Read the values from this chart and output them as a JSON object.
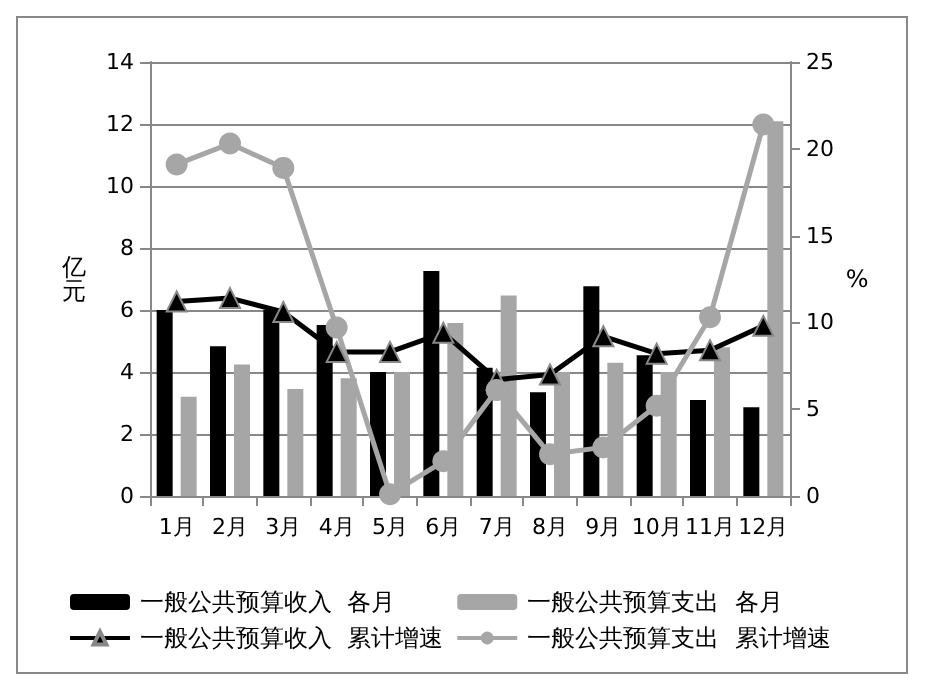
{
  "chart_data": {
    "type": "bar",
    "categories": [
      "1月",
      "2月",
      "3月",
      "4月",
      "5月",
      "6月",
      "7月",
      "8月",
      "9月",
      "10月",
      "11月",
      "12月"
    ],
    "ylabel": "亿元",
    "y2label": "%",
    "ylim": [
      0,
      14
    ],
    "yticks": [
      0,
      2,
      4,
      6,
      8,
      10,
      12,
      14
    ],
    "y2lim": [
      0,
      25
    ],
    "y2ticks": [
      0,
      5,
      10,
      15,
      20,
      25
    ],
    "grid": "y",
    "legend": "bottom",
    "series": [
      {
        "name": "一般公共预算收入  各月",
        "color": "#000000",
        "values": [
          6.0,
          4.83,
          6.0,
          5.52,
          4.0,
          7.26,
          4.14,
          3.35,
          6.77,
          4.54,
          3.1,
          2.86
        ]
      },
      {
        "name": "一般公共预算支出  各月",
        "color": "#a6a6a6",
        "values": [
          3.2,
          4.24,
          3.45,
          3.8,
          4.0,
          5.58,
          6.47,
          4.0,
          4.3,
          4.0,
          4.8,
          12.09
        ]
      },
      {
        "name": "一般公共预算收入  累计增速",
        "type": "line",
        "axis": "y2",
        "marker": "triangle",
        "color": "#000000",
        "values": [
          11.2,
          11.4,
          10.6,
          8.3,
          8.3,
          9.4,
          6.7,
          7.0,
          9.2,
          8.2,
          8.4,
          9.8
        ]
      },
      {
        "name": "一般公共预算支出  累计增速",
        "type": "line",
        "axis": "y2",
        "marker": "circle",
        "color": "#a6a6a6",
        "values": [
          19.1,
          20.3,
          18.9,
          9.7,
          0.1,
          2.0,
          6.1,
          2.4,
          2.8,
          5.2,
          10.3,
          21.4
        ]
      }
    ]
  }
}
